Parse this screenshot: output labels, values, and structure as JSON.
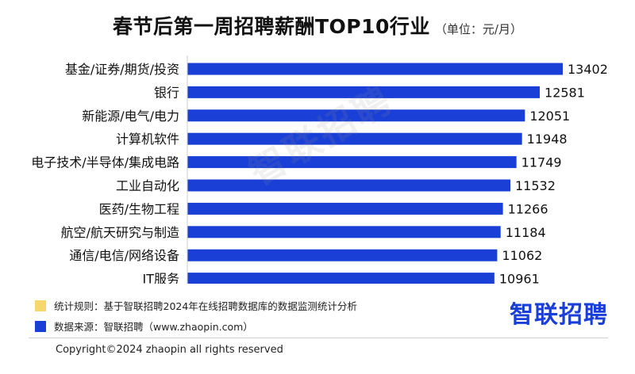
{
  "title": "春节后第一周招聘薪酬TOP10行业",
  "unit": "（单位：元/月）",
  "watermark": "智联招聘",
  "notes": [
    {
      "text": "统计规则：基于智联招聘2024年在线招聘数据库的数据监测统计分析",
      "color": "#f5d76e"
    },
    {
      "text": "数据来源：智联招聘（www.zhaopin.com）",
      "color": "#1a3fd6"
    }
  ],
  "logo": "智联招聘",
  "copyright": "Copyright©2024 zhaopin all rights reserved",
  "colors": {
    "bar": "#1a3fd6"
  },
  "chart_data": {
    "type": "bar",
    "orientation": "horizontal",
    "categories": [
      "基金/证券/期货/投资",
      "银行",
      "新能源/电气/电力",
      "计算机软件",
      "电子技术/半导体/集成电路",
      "工业自动化",
      "医药/生物工程",
      "航空/航天研究与制造",
      "通信/电信/网络设备",
      "IT服务"
    ],
    "values": [
      13402,
      12581,
      12051,
      11948,
      11749,
      11532,
      11266,
      11184,
      11062,
      10961
    ],
    "title": "春节后第一周招聘薪酬TOP10行业",
    "xlabel": "",
    "ylabel": "",
    "data_labels": true,
    "grid": false,
    "legend": "none"
  }
}
